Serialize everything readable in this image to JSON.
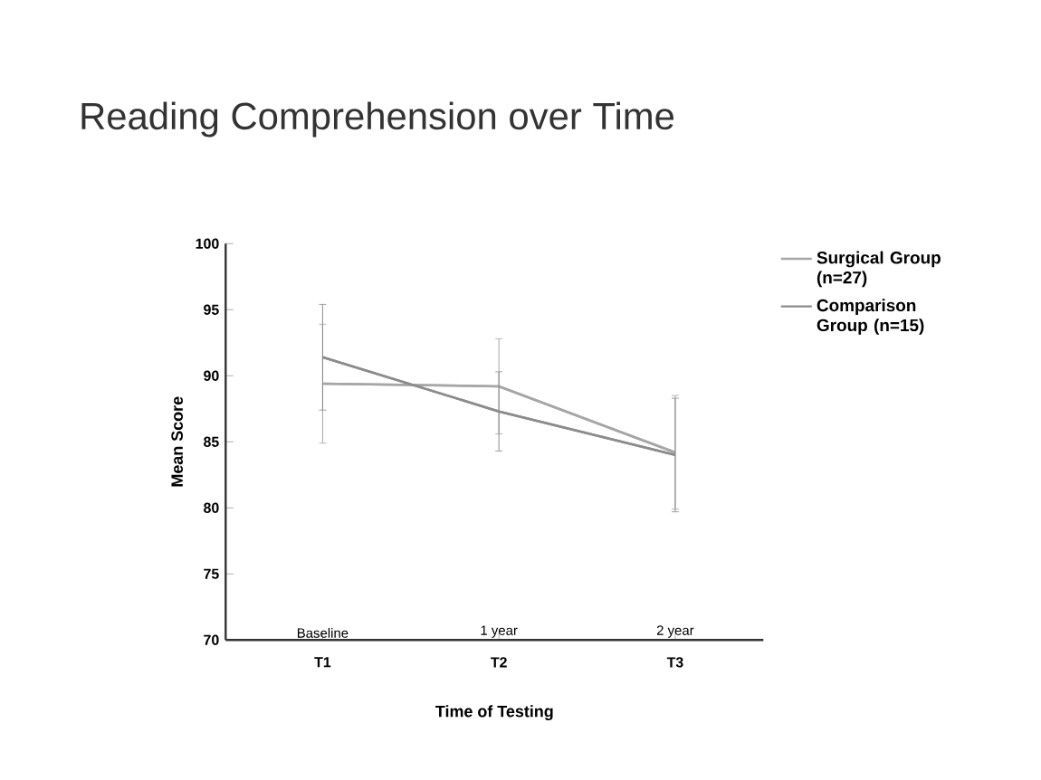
{
  "chart_data": {
    "type": "line",
    "title": "Reading Comprehension over Time",
    "xlabel": "Time of Testing",
    "ylabel": "Mean Score",
    "categories": [
      "T1",
      "T2",
      "T3"
    ],
    "series": [
      {
        "name": "Surgical Group (n=27)",
        "color": "#a6a6a6",
        "values": [
          89.4,
          89.2,
          84.2
        ],
        "errors": [
          4.5,
          3.6,
          4.3
        ]
      },
      {
        "name": "Comparison Group (n=15)",
        "color": "#8c8c8c",
        "values": [
          91.4,
          87.3,
          84.0
        ],
        "errors": [
          4,
          3,
          4.3
        ]
      }
    ],
    "annotations": [
      "Baseline",
      "1 year",
      "2 year"
    ],
    "ylim": [
      70,
      100
    ],
    "yticks": [
      70,
      75,
      80,
      85,
      90,
      95,
      100
    ],
    "grid": false,
    "legend": "right"
  }
}
